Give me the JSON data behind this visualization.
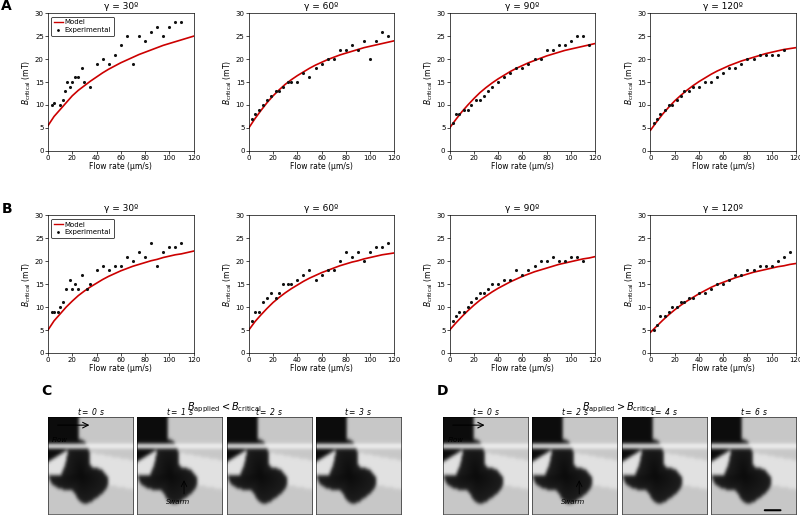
{
  "row_A": {
    "gammas": [
      30,
      60,
      90,
      120
    ],
    "model_curves": [
      {
        "x": [
          0,
          5,
          10,
          15,
          20,
          25,
          30,
          35,
          40,
          45,
          50,
          55,
          60,
          65,
          70,
          75,
          80,
          85,
          90,
          95,
          100,
          105,
          110,
          115,
          120
        ],
        "y": [
          5.5,
          7.5,
          9.0,
          10.5,
          12.0,
          13.2,
          14.2,
          15.2,
          16.1,
          17.0,
          17.8,
          18.5,
          19.2,
          19.8,
          20.4,
          21.0,
          21.5,
          22.0,
          22.5,
          23.0,
          23.4,
          23.8,
          24.2,
          24.6,
          25.0
        ]
      },
      {
        "x": [
          0,
          5,
          10,
          15,
          20,
          25,
          30,
          35,
          40,
          45,
          50,
          55,
          60,
          65,
          70,
          75,
          80,
          85,
          90,
          95,
          100,
          105,
          110,
          115,
          120
        ],
        "y": [
          5.0,
          7.0,
          8.8,
          10.5,
          12.0,
          13.3,
          14.5,
          15.5,
          16.4,
          17.2,
          18.0,
          18.7,
          19.3,
          19.9,
          20.4,
          20.9,
          21.3,
          21.7,
          22.1,
          22.5,
          22.8,
          23.1,
          23.4,
          23.7,
          24.0
        ]
      },
      {
        "x": [
          0,
          5,
          10,
          15,
          20,
          25,
          30,
          35,
          40,
          45,
          50,
          55,
          60,
          65,
          70,
          75,
          80,
          85,
          90,
          95,
          100,
          105,
          110,
          115,
          120
        ],
        "y": [
          5.0,
          6.8,
          8.5,
          10.0,
          11.4,
          12.7,
          13.8,
          14.8,
          15.7,
          16.5,
          17.3,
          18.0,
          18.6,
          19.2,
          19.7,
          20.2,
          20.7,
          21.1,
          21.5,
          21.9,
          22.2,
          22.5,
          22.8,
          23.1,
          23.4
        ]
      },
      {
        "x": [
          0,
          5,
          10,
          15,
          20,
          25,
          30,
          35,
          40,
          45,
          50,
          55,
          60,
          65,
          70,
          75,
          80,
          85,
          90,
          95,
          100,
          105,
          110,
          115,
          120
        ],
        "y": [
          4.5,
          6.3,
          8.0,
          9.5,
          10.9,
          12.1,
          13.2,
          14.2,
          15.1,
          15.9,
          16.7,
          17.4,
          18.0,
          18.6,
          19.1,
          19.6,
          20.0,
          20.4,
          20.8,
          21.2,
          21.5,
          21.8,
          22.1,
          22.3,
          22.5
        ]
      }
    ],
    "scatter_data": [
      {
        "x": [
          3,
          5,
          10,
          12,
          14,
          16,
          18,
          20,
          22,
          25,
          28,
          30,
          35,
          40,
          45,
          50,
          55,
          60,
          65,
          70,
          75,
          80,
          85,
          90,
          95,
          100,
          105,
          110
        ],
        "y": [
          10,
          10.5,
          10,
          11,
          13,
          15,
          14,
          15,
          16,
          16,
          18,
          15,
          14,
          19,
          20,
          19,
          21,
          23,
          25,
          19,
          25,
          24,
          26,
          27,
          25,
          27,
          28,
          28
        ]
      },
      {
        "x": [
          3,
          5,
          8,
          12,
          15,
          18,
          22,
          25,
          28,
          32,
          35,
          40,
          45,
          50,
          55,
          60,
          65,
          70,
          75,
          80,
          85,
          90,
          95,
          100,
          105,
          110,
          115
        ],
        "y": [
          7,
          8,
          9,
          10,
          11,
          12,
          13,
          13,
          14,
          15,
          15,
          15,
          17,
          16,
          18,
          19,
          20,
          20,
          22,
          22,
          23,
          22,
          24,
          20,
          24,
          26,
          25
        ]
      },
      {
        "x": [
          3,
          5,
          8,
          12,
          15,
          18,
          22,
          25,
          28,
          32,
          35,
          40,
          45,
          50,
          55,
          60,
          65,
          70,
          75,
          80,
          85,
          90,
          95,
          100,
          105,
          110,
          115
        ],
        "y": [
          6,
          8,
          8,
          9,
          9,
          10,
          11,
          11,
          12,
          13,
          14,
          15,
          16,
          17,
          18,
          18,
          19,
          20,
          20,
          22,
          22,
          23,
          23,
          24,
          25,
          25,
          23
        ]
      },
      {
        "x": [
          3,
          5,
          8,
          12,
          15,
          18,
          22,
          25,
          28,
          32,
          35,
          40,
          45,
          50,
          55,
          60,
          65,
          70,
          75,
          80,
          85,
          90,
          95,
          100,
          105,
          110
        ],
        "y": [
          6,
          7,
          8,
          9,
          10,
          10,
          11,
          12,
          13,
          13,
          14,
          14,
          15,
          15,
          16,
          17,
          18,
          18,
          19,
          20,
          20,
          21,
          21,
          21,
          21,
          22
        ]
      }
    ]
  },
  "row_B": {
    "gammas": [
      30,
      60,
      90,
      120
    ],
    "model_curves": [
      {
        "x": [
          0,
          5,
          10,
          15,
          20,
          25,
          30,
          35,
          40,
          45,
          50,
          55,
          60,
          65,
          70,
          75,
          80,
          85,
          90,
          95,
          100,
          105,
          110,
          115,
          120
        ],
        "y": [
          5.0,
          7.0,
          8.5,
          10.0,
          11.3,
          12.5,
          13.5,
          14.4,
          15.2,
          16.0,
          16.7,
          17.3,
          17.9,
          18.4,
          18.9,
          19.3,
          19.7,
          20.1,
          20.4,
          20.8,
          21.1,
          21.4,
          21.6,
          21.9,
          22.2
        ]
      },
      {
        "x": [
          0,
          5,
          10,
          15,
          20,
          25,
          30,
          35,
          40,
          45,
          50,
          55,
          60,
          65,
          70,
          75,
          80,
          85,
          90,
          95,
          100,
          105,
          110,
          115,
          120
        ],
        "y": [
          5.0,
          6.8,
          8.3,
          9.7,
          11.0,
          12.1,
          13.1,
          14.0,
          14.8,
          15.6,
          16.3,
          16.9,
          17.5,
          18.0,
          18.5,
          19.0,
          19.4,
          19.8,
          20.1,
          20.5,
          20.8,
          21.1,
          21.4,
          21.6,
          21.8
        ]
      },
      {
        "x": [
          0,
          5,
          10,
          15,
          20,
          25,
          30,
          35,
          40,
          45,
          50,
          55,
          60,
          65,
          70,
          75,
          80,
          85,
          90,
          95,
          100,
          105,
          110,
          115,
          120
        ],
        "y": [
          5.0,
          6.5,
          7.9,
          9.2,
          10.4,
          11.5,
          12.4,
          13.3,
          14.1,
          14.8,
          15.5,
          16.1,
          16.7,
          17.2,
          17.7,
          18.1,
          18.5,
          18.9,
          19.3,
          19.6,
          19.9,
          20.2,
          20.5,
          20.7,
          21.0
        ]
      },
      {
        "x": [
          0,
          5,
          10,
          15,
          20,
          25,
          30,
          35,
          40,
          45,
          50,
          55,
          60,
          65,
          70,
          75,
          80,
          85,
          90,
          95,
          100,
          105,
          110,
          115,
          120
        ],
        "y": [
          4.5,
          5.8,
          7.1,
          8.3,
          9.4,
          10.4,
          11.3,
          12.1,
          12.9,
          13.6,
          14.3,
          14.9,
          15.4,
          15.9,
          16.4,
          16.8,
          17.2,
          17.6,
          17.9,
          18.2,
          18.5,
          18.8,
          19.0,
          19.3,
          19.5
        ]
      }
    ],
    "scatter_data": [
      {
        "x": [
          3,
          5,
          8,
          10,
          12,
          15,
          18,
          20,
          22,
          25,
          28,
          32,
          35,
          40,
          45,
          50,
          55,
          60,
          65,
          70,
          75,
          80,
          85,
          90,
          95,
          100,
          105,
          110
        ],
        "y": [
          9,
          9,
          9,
          10,
          11,
          14,
          16,
          14,
          15,
          14,
          17,
          14,
          15,
          18,
          19,
          18,
          19,
          19,
          21,
          20,
          22,
          21,
          24,
          19,
          22,
          23,
          23,
          24
        ]
      },
      {
        "x": [
          3,
          5,
          8,
          12,
          15,
          18,
          22,
          25,
          28,
          32,
          35,
          40,
          45,
          50,
          55,
          60,
          65,
          70,
          75,
          80,
          85,
          90,
          95,
          100,
          105,
          110,
          115
        ],
        "y": [
          7,
          9,
          9,
          11,
          12,
          13,
          12,
          13,
          15,
          15,
          15,
          16,
          17,
          18,
          16,
          17,
          18,
          18,
          20,
          22,
          21,
          22,
          20,
          22,
          23,
          23,
          24
        ]
      },
      {
        "x": [
          3,
          5,
          8,
          12,
          15,
          18,
          22,
          25,
          28,
          32,
          35,
          40,
          45,
          50,
          55,
          60,
          65,
          70,
          75,
          80,
          85,
          90,
          95,
          100,
          105,
          110
        ],
        "y": [
          7,
          8,
          9,
          9,
          10,
          11,
          12,
          13,
          13,
          14,
          15,
          15,
          16,
          16,
          18,
          17,
          18,
          19,
          20,
          20,
          21,
          20,
          20,
          21,
          21,
          20
        ]
      },
      {
        "x": [
          3,
          5,
          8,
          12,
          15,
          18,
          22,
          25,
          28,
          32,
          35,
          40,
          45,
          50,
          55,
          60,
          65,
          70,
          75,
          80,
          85,
          90,
          95,
          100,
          105,
          110,
          115
        ],
        "y": [
          5,
          6,
          8,
          8,
          9,
          10,
          10,
          11,
          11,
          12,
          12,
          13,
          13,
          14,
          15,
          15,
          16,
          17,
          17,
          18,
          18,
          19,
          19,
          19,
          20,
          21,
          22
        ]
      }
    ]
  },
  "subplot_titles_A": [
    "γ = 30º",
    "γ = 60º",
    "γ = 90º",
    "γ = 120º"
  ],
  "subplot_titles_B": [
    "γ = 30º",
    "γ = 60º",
    "γ = 90º",
    "γ = 120º"
  ],
  "xlabel": "Flow rate (μm/s)",
  "xlim": [
    0,
    120
  ],
  "ylim": [
    0,
    30
  ],
  "yticks": [
    0,
    5,
    10,
    15,
    20,
    25,
    30
  ],
  "xticks": [
    0,
    20,
    40,
    60,
    80,
    100,
    120
  ],
  "model_color": "#cc0000",
  "scatter_color": "#111111",
  "panel_C_title": "$B_\\mathregular{applied} < B_\\mathregular{critical}$",
  "panel_D_title": "$B_\\mathregular{applied} > B_\\mathregular{critical}$",
  "panel_C_time_labels": [
    "t = 0 s",
    "t = 1 s",
    "t = 2 s",
    "t = 3 s"
  ],
  "panel_D_time_labels": [
    "t = 0 s",
    "t = 2 s",
    "t = 4 s",
    "t = 6 s"
  ]
}
